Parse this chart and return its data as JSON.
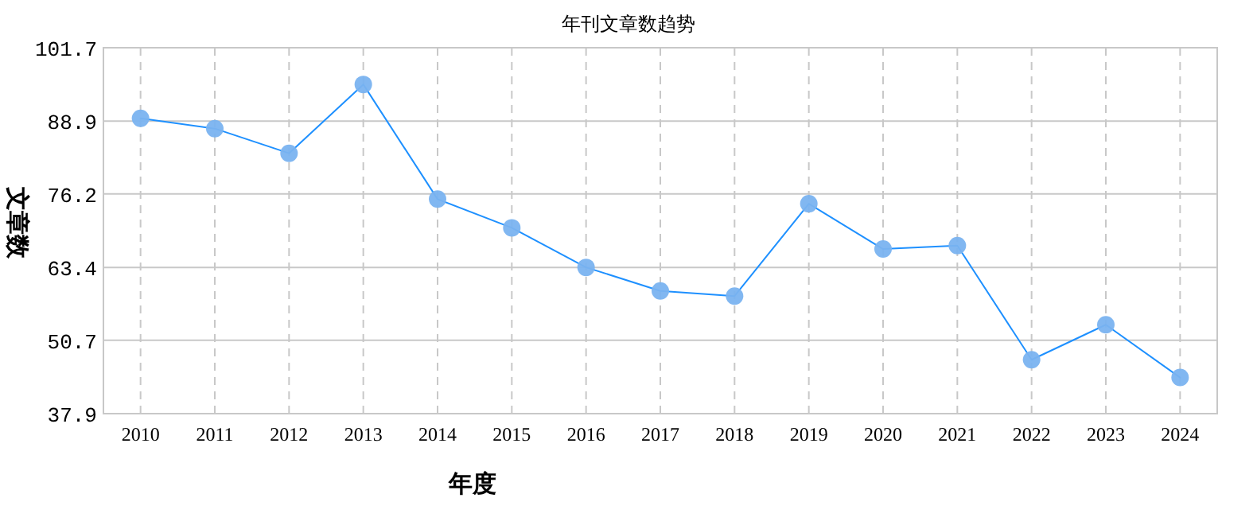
{
  "chart_data": {
    "type": "line",
    "title": "年刊文章数趋势",
    "xlabel": "年度",
    "ylabel": "文章数",
    "categories": [
      "2010",
      "2011",
      "2012",
      "2013",
      "2014",
      "2015",
      "2016",
      "2017",
      "2018",
      "2019",
      "2020",
      "2021",
      "2022",
      "2023",
      "2024"
    ],
    "series": [
      {
        "color": "#1e90ff",
        "values": [
          89.4,
          87.6,
          83.3,
          95.3,
          75.3,
          70.3,
          63.4,
          59.3,
          58.4,
          74.5,
          66.6,
          67.2,
          47.3,
          53.4,
          44.2
        ]
      }
    ],
    "ylim": [
      37.9,
      101.7
    ],
    "yticks": [
      37.9,
      50.7,
      63.4,
      76.2,
      88.9,
      101.7
    ],
    "grid": true,
    "marker": "circle",
    "line_style": "solid"
  }
}
